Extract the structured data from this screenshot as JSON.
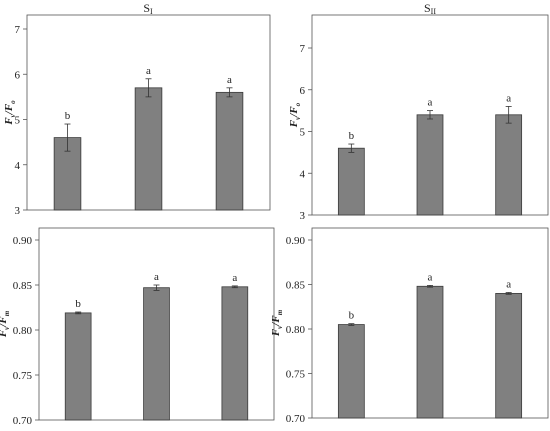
{
  "column_titles": [
    "SI",
    "SII"
  ],
  "chart_data": [
    {
      "type": "bar",
      "title": "SI",
      "ylabel_main": "F",
      "ylabel_sub1": "v",
      "ylabel_sep": "/",
      "ylabel_main2": "F",
      "ylabel_sub2": "o",
      "categories": [
        "",
        "",
        ""
      ],
      "values": [
        4.6,
        5.7,
        5.6
      ],
      "errors": [
        0.3,
        0.2,
        0.1
      ],
      "letters": [
        "b",
        "a",
        "a"
      ],
      "ylim": [
        3,
        7
      ],
      "yticks": [
        "3",
        "4",
        "5",
        "6",
        "7"
      ],
      "grid": false,
      "bar_color": "#808080"
    },
    {
      "type": "bar",
      "title": "SII",
      "ylabel_main": "F",
      "ylabel_sub1": "v",
      "ylabel_sep": "/",
      "ylabel_main2": "F",
      "ylabel_sub2": "o",
      "categories": [
        "",
        "",
        ""
      ],
      "values": [
        4.6,
        5.4,
        5.4
      ],
      "errors": [
        0.1,
        0.1,
        0.2
      ],
      "letters": [
        "b",
        "a",
        "a"
      ],
      "ylim": [
        3,
        7
      ],
      "yticks": [
        "3",
        "4",
        "5",
        "6",
        "7"
      ],
      "grid": false,
      "bar_color": "#808080"
    },
    {
      "type": "bar",
      "title": "",
      "ylabel_main": "F",
      "ylabel_sub1": "v",
      "ylabel_sep": "/",
      "ylabel_main2": "F",
      "ylabel_sub2": "m",
      "categories": [
        "",
        "",
        ""
      ],
      "values": [
        0.819,
        0.847,
        0.848
      ],
      "errors": [
        0.001,
        0.003,
        0.001
      ],
      "letters": [
        "b",
        "a",
        "a"
      ],
      "ylim": [
        0.7,
        0.9
      ],
      "yticks": [
        "0.70",
        "0.75",
        "0.80",
        "0.85",
        "0.90"
      ],
      "grid": false,
      "bar_color": "#808080"
    },
    {
      "type": "bar",
      "title": "",
      "ylabel_main": "F",
      "ylabel_sub1": "v",
      "ylabel_sep": "/",
      "ylabel_main2": "F",
      "ylabel_sub2": "m",
      "categories": [
        "",
        "",
        ""
      ],
      "values": [
        0.805,
        0.848,
        0.84
      ],
      "errors": [
        0.001,
        0.001,
        0.001
      ],
      "letters": [
        "b",
        "a",
        "a"
      ],
      "ylim": [
        0.7,
        0.9
      ],
      "yticks": [
        "0.70",
        "0.75",
        "0.80",
        "0.85",
        "0.90"
      ],
      "grid": false,
      "bar_color": "#808080"
    }
  ]
}
